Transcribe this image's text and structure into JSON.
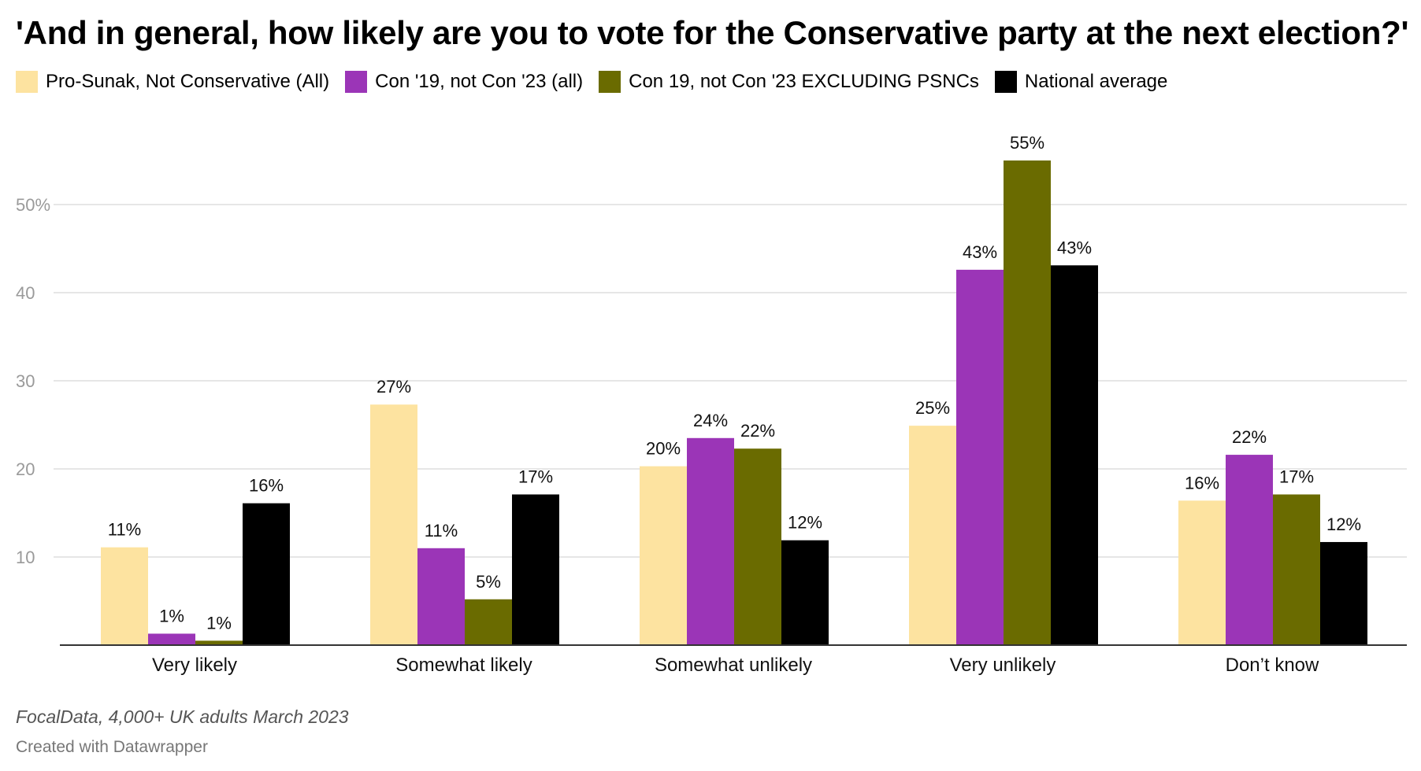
{
  "title": "'And in general, how likely are you to vote for the Conservative party at the next election?'",
  "source": "FocalData, 4,000+ UK adults March 2023",
  "credit": "Created with Datawrapper",
  "chart_data": {
    "type": "bar",
    "categories": [
      "Very likely",
      "Somewhat likely",
      "Somewhat unlikely",
      "Very unlikely",
      "Don’t know"
    ],
    "series": [
      {
        "name": "Pro-Sunak, Not Conservative (All)",
        "color": "#fde3a0",
        "values": [
          11.1,
          27.3,
          20.3,
          24.9,
          16.4
        ],
        "labels": [
          "11%",
          "27%",
          "20%",
          "25%",
          "16%"
        ]
      },
      {
        "name": "Con '19, not Con '23 (all)",
        "color": "#9b35b7",
        "values": [
          1.3,
          11.0,
          23.5,
          42.6,
          21.6
        ],
        "labels": [
          "1%",
          "11%",
          "24%",
          "43%",
          "22%"
        ]
      },
      {
        "name": "Con 19, not Con '23 EXCLUDING PSNCs",
        "color": "#6a6b00",
        "values": [
          0.5,
          5.2,
          22.3,
          55.0,
          17.1
        ],
        "labels": [
          "1%",
          "5%",
          "22%",
          "55%",
          "17%"
        ]
      },
      {
        "name": "National average",
        "color": "#000000",
        "values": [
          16.1,
          17.1,
          11.9,
          43.1,
          11.7
        ],
        "labels": [
          "16%",
          "17%",
          "12%",
          "43%",
          "12%"
        ]
      }
    ],
    "yticks": [
      10,
      20,
      30,
      40,
      50
    ],
    "ytick_labels": [
      "10",
      "20",
      "30",
      "40",
      "50%"
    ],
    "ylim": [
      0,
      60
    ],
    "grid": true,
    "legend": "top-left"
  }
}
